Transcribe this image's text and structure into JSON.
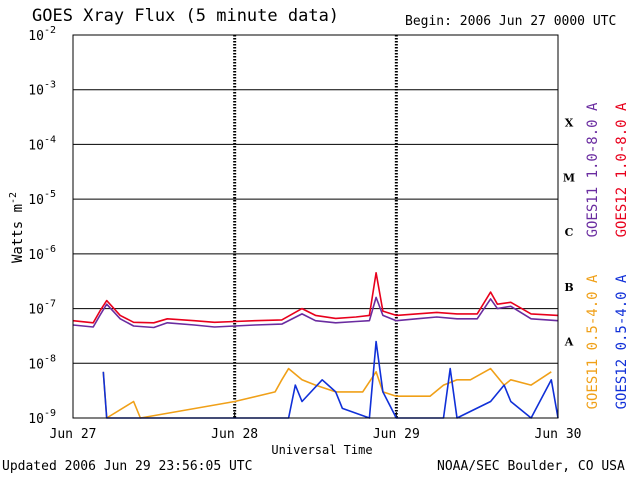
{
  "header": {
    "title": "GOES Xray Flux (5 minute data)",
    "begin": "Begin:  2006 Jun 27 0000 UTC"
  },
  "footer": {
    "updated": "Updated 2006 Jun 29 23:56:05 UTC",
    "credit": "NOAA/SEC Boulder, CO USA"
  },
  "chart_data": {
    "type": "line",
    "title": "GOES Xray Flux (5 minute data)",
    "xlabel": "Universal Time",
    "ylabel": "Watts m",
    "ylabel_sup": "-2",
    "yscale": "log",
    "ylim": [
      1e-09,
      0.01
    ],
    "xlim": [
      "2006-06-27 00:00",
      "2006-06-30 00:00"
    ],
    "grid": "horizontal lines at each decade",
    "yticks": [
      {
        "value": 0.01,
        "base": "10",
        "exp": "-2"
      },
      {
        "value": 0.001,
        "base": "10",
        "exp": "-3"
      },
      {
        "value": 0.0001,
        "base": "10",
        "exp": "-4"
      },
      {
        "value": 1e-05,
        "base": "10",
        "exp": "-5"
      },
      {
        "value": 1e-06,
        "base": "10",
        "exp": "-6"
      },
      {
        "value": 1e-07,
        "base": "10",
        "exp": "-7"
      },
      {
        "value": 1e-08,
        "base": "10",
        "exp": "-8"
      },
      {
        "value": 1e-09,
        "base": "10",
        "exp": "-9"
      }
    ],
    "xticks": [
      {
        "value": "2006-06-27 00:00",
        "label": "Jun 27"
      },
      {
        "value": "2006-06-28 00:00",
        "label": "Jun 28"
      },
      {
        "value": "2006-06-29 00:00",
        "label": "Jun 29"
      },
      {
        "value": "2006-06-30 00:00",
        "label": "Jun 30"
      }
    ],
    "flare_classes": [
      {
        "label": "X",
        "value": 0.00025
      },
      {
        "label": "M",
        "value": 2.5e-05
      },
      {
        "label": "C",
        "value": 2.5e-06
      },
      {
        "label": "B",
        "value": 2.5e-07
      },
      {
        "label": "A",
        "value": 2.5e-08
      }
    ],
    "series": [
      {
        "name": "GOES11 1.0-8.0 A",
        "color": "#6a2ca0",
        "points": [
          [
            "2006-06-27 00:00",
            5e-08
          ],
          [
            "2006-06-27 03:00",
            4.6e-08
          ],
          [
            "2006-06-27 04:00",
            7.5e-08
          ],
          [
            "2006-06-27 05:00",
            1.2e-07
          ],
          [
            "2006-06-27 07:00",
            6.5e-08
          ],
          [
            "2006-06-27 09:00",
            4.8e-08
          ],
          [
            "2006-06-27 12:00",
            4.5e-08
          ],
          [
            "2006-06-27 14:00",
            5.5e-08
          ],
          [
            "2006-06-27 18:00",
            5e-08
          ],
          [
            "2006-06-27 21:00",
            4.6e-08
          ],
          [
            "2006-06-28 00:00",
            4.8e-08
          ],
          [
            "2006-06-28 03:00",
            5e-08
          ],
          [
            "2006-06-28 07:00",
            5.2e-08
          ],
          [
            "2006-06-28 10:00",
            8e-08
          ],
          [
            "2006-06-28 12:00",
            6e-08
          ],
          [
            "2006-06-28 15:00",
            5.5e-08
          ],
          [
            "2006-06-28 18:00",
            5.8e-08
          ],
          [
            "2006-06-28 20:00",
            6e-08
          ],
          [
            "2006-06-28 21:00",
            1.6e-07
          ],
          [
            "2006-06-28 22:00",
            7.5e-08
          ],
          [
            "2006-06-29 00:00",
            6e-08
          ],
          [
            "2006-06-29 03:00",
            6.5e-08
          ],
          [
            "2006-06-29 06:00",
            7e-08
          ],
          [
            "2006-06-29 09:00",
            6.5e-08
          ],
          [
            "2006-06-29 12:00",
            6.5e-08
          ],
          [
            "2006-06-29 14:00",
            1.5e-07
          ],
          [
            "2006-06-29 15:00",
            1e-07
          ],
          [
            "2006-06-29 17:00",
            1.1e-07
          ],
          [
            "2006-06-29 20:00",
            6.5e-08
          ],
          [
            "2006-06-30 00:00",
            6e-08
          ]
        ]
      },
      {
        "name": "GOES12 1.0-8.0 A",
        "color": "#e8001c",
        "points": [
          [
            "2006-06-27 00:00",
            6e-08
          ],
          [
            "2006-06-27 03:00",
            5.5e-08
          ],
          [
            "2006-06-27 04:00",
            9e-08
          ],
          [
            "2006-06-27 05:00",
            1.4e-07
          ],
          [
            "2006-06-27 07:00",
            7.5e-08
          ],
          [
            "2006-06-27 09:00",
            5.6e-08
          ],
          [
            "2006-06-27 12:00",
            5.5e-08
          ],
          [
            "2006-06-27 14:00",
            6.5e-08
          ],
          [
            "2006-06-27 18:00",
            6e-08
          ],
          [
            "2006-06-27 21:00",
            5.6e-08
          ],
          [
            "2006-06-28 00:00",
            5.8e-08
          ],
          [
            "2006-06-28 03:00",
            6e-08
          ],
          [
            "2006-06-28 07:00",
            6.2e-08
          ],
          [
            "2006-06-28 10:00",
            1e-07
          ],
          [
            "2006-06-28 12:00",
            7.5e-08
          ],
          [
            "2006-06-28 15:00",
            6.6e-08
          ],
          [
            "2006-06-28 18:00",
            7e-08
          ],
          [
            "2006-06-28 20:00",
            7.5e-08
          ],
          [
            "2006-06-28 21:00",
            4.5e-07
          ],
          [
            "2006-06-28 22:00",
            9e-08
          ],
          [
            "2006-06-29 00:00",
            7.5e-08
          ],
          [
            "2006-06-29 03:00",
            8e-08
          ],
          [
            "2006-06-29 06:00",
            8.5e-08
          ],
          [
            "2006-06-29 09:00",
            8e-08
          ],
          [
            "2006-06-29 12:00",
            8e-08
          ],
          [
            "2006-06-29 14:00",
            2e-07
          ],
          [
            "2006-06-29 15:00",
            1.2e-07
          ],
          [
            "2006-06-29 17:00",
            1.3e-07
          ],
          [
            "2006-06-29 20:00",
            8e-08
          ],
          [
            "2006-06-30 00:00",
            7.5e-08
          ]
        ]
      },
      {
        "name": "GOES11 0.5-4.0 A",
        "color": "#f0a018",
        "points": [
          [
            "2006-06-27 04:30",
            7e-09
          ],
          [
            "2006-06-27 05:00",
            1e-09
          ],
          [
            "2006-06-27 09:00",
            2e-09
          ],
          [
            "2006-06-27 10:00",
            1e-09
          ],
          [
            "2006-06-28 00:00",
            2e-09
          ],
          [
            "2006-06-28 06:00",
            3e-09
          ],
          [
            "2006-06-28 07:00",
            5e-09
          ],
          [
            "2006-06-28 08:00",
            8e-09
          ],
          [
            "2006-06-28 10:00",
            5e-09
          ],
          [
            "2006-06-28 12:00",
            4e-09
          ],
          [
            "2006-06-28 15:00",
            3e-09
          ],
          [
            "2006-06-28 19:00",
            3e-09
          ],
          [
            "2006-06-28 21:00",
            7e-09
          ],
          [
            "2006-06-28 22:00",
            3e-09
          ],
          [
            "2006-06-29 00:00",
            2.5e-09
          ],
          [
            "2006-06-29 05:00",
            2.5e-09
          ],
          [
            "2006-06-29 07:00",
            4e-09
          ],
          [
            "2006-06-29 09:00",
            5e-09
          ],
          [
            "2006-06-29 11:00",
            5e-09
          ],
          [
            "2006-06-29 14:00",
            8e-09
          ],
          [
            "2006-06-29 16:00",
            4e-09
          ],
          [
            "2006-06-29 17:00",
            5e-09
          ],
          [
            "2006-06-29 20:00",
            4e-09
          ],
          [
            "2006-06-29 23:00",
            7e-09
          ]
        ]
      },
      {
        "name": "GOES12 0.5-4.0 A",
        "color": "#1030d8",
        "points": [
          [
            "2006-06-27 04:30",
            7e-09
          ],
          [
            "2006-06-27 05:00",
            1e-09
          ],
          [
            "2006-06-28 08:00",
            1e-09
          ],
          [
            "2006-06-28 09:00",
            4e-09
          ],
          [
            "2006-06-28 10:00",
            2e-09
          ],
          [
            "2006-06-28 13:00",
            5e-09
          ],
          [
            "2006-06-28 15:00",
            3e-09
          ],
          [
            "2006-06-28 16:00",
            1.5e-09
          ],
          [
            "2006-06-28 20:00",
            1e-09
          ],
          [
            "2006-06-28 21:00",
            2.5e-08
          ],
          [
            "2006-06-28 22:00",
            3e-09
          ],
          [
            "2006-06-29 00:00",
            1e-09
          ],
          [
            "2006-06-29 07:00",
            1e-09
          ],
          [
            "2006-06-29 08:00",
            8e-09
          ],
          [
            "2006-06-29 09:00",
            1e-09
          ],
          [
            "2006-06-29 14:00",
            2e-09
          ],
          [
            "2006-06-29 16:00",
            4e-09
          ],
          [
            "2006-06-29 17:00",
            2e-09
          ],
          [
            "2006-06-29 20:00",
            1e-09
          ],
          [
            "2006-06-29 23:00",
            5e-09
          ],
          [
            "2006-06-30 00:00",
            1e-09
          ]
        ]
      }
    ]
  }
}
